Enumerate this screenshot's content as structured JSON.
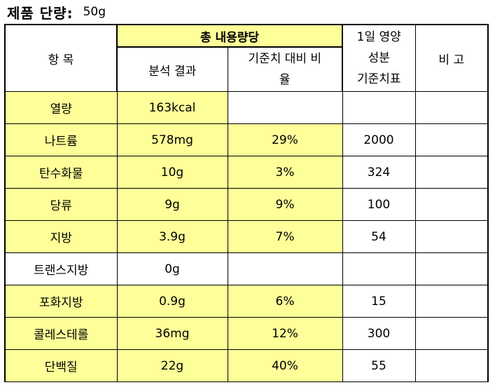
{
  "title": {
    "label": "제품 단량:",
    "value": "50g"
  },
  "header": {
    "item": "항 목",
    "per_serving": "총 내용량당",
    "analysis": "분석 결과",
    "ratio": "기준치 대비 비율",
    "ratio_line1": "기준치 대비 비",
    "ratio_line2": "율",
    "daily_line1": "1일 영양",
    "daily_line2": "성분",
    "daily_line3": "기준치표",
    "remarks": "비 고"
  },
  "rows": [
    {
      "item": "열량",
      "analysis": "163kcal",
      "ratio": "",
      "daily": "",
      "remarks": ""
    },
    {
      "item": "나트륨",
      "analysis": "578mg",
      "ratio": "29%",
      "daily": "2000",
      "remarks": ""
    },
    {
      "item": "탄수화물",
      "analysis": "10g",
      "ratio": "3%",
      "daily": "324",
      "remarks": ""
    },
    {
      "item": "당류",
      "analysis": "9g",
      "ratio": "9%",
      "daily": "100",
      "remarks": ""
    },
    {
      "item": "지방",
      "analysis": "3.9g",
      "ratio": "7%",
      "daily": "54",
      "remarks": ""
    },
    {
      "item": "트랜스지방",
      "analysis": "0g",
      "ratio": "",
      "daily": "",
      "remarks": ""
    },
    {
      "item": "포화지방",
      "analysis": "0.9g",
      "ratio": "6%",
      "daily": "15",
      "remarks": ""
    },
    {
      "item": "콜레스테롤",
      "analysis": "36mg",
      "ratio": "12%",
      "daily": "300",
      "remarks": ""
    },
    {
      "item": "단백질",
      "analysis": "22g",
      "ratio": "40%",
      "daily": "55",
      "remarks": ""
    }
  ],
  "colors": {
    "highlight": "#ffff99",
    "border": "#000000"
  }
}
